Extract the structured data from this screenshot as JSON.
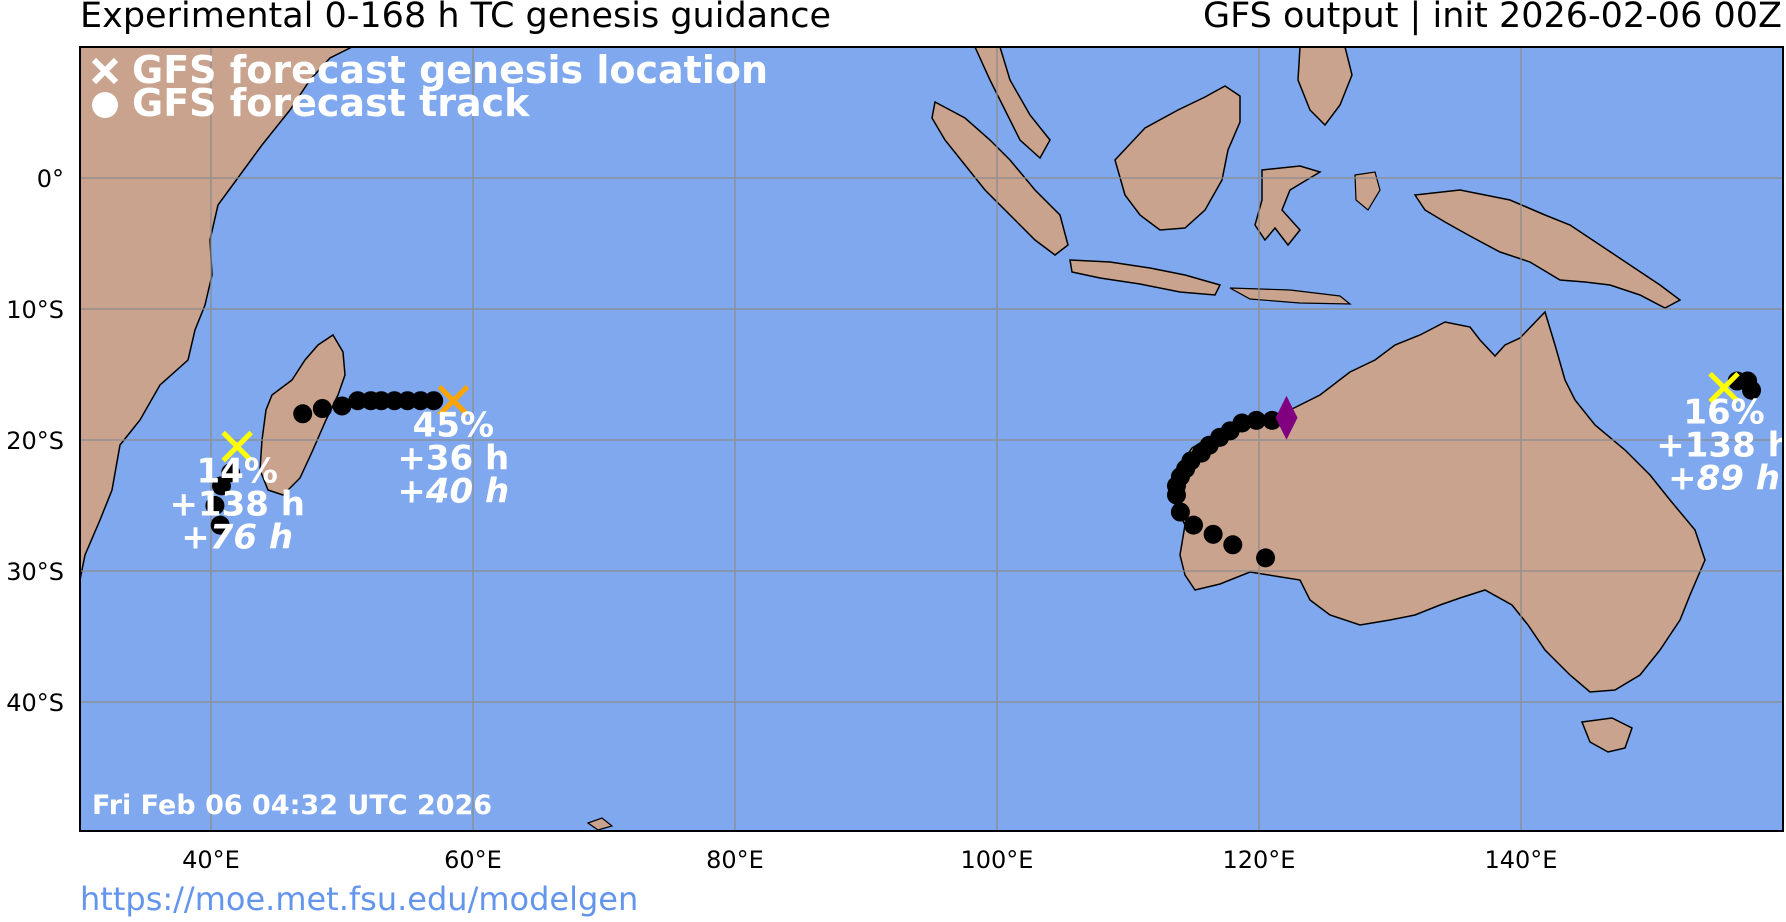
{
  "header": {
    "title_left": "Experimental 0-168 h TC genesis guidance",
    "title_right": "GFS output | init 2026-02-06 00Z"
  },
  "legend": {
    "genesis_label": "GFS forecast genesis location",
    "track_label": "GFS forecast track"
  },
  "axes": {
    "lon_ticks": [
      "40°E",
      "60°E",
      "80°E",
      "100°E",
      "120°E",
      "140°E"
    ],
    "lat_ticks": [
      "0°",
      "10°S",
      "20°S",
      "30°S",
      "40°S"
    ],
    "lon_range": [
      30,
      160
    ],
    "lat_range": [
      -50,
      10
    ]
  },
  "timestamp": "Fri Feb 06 04:32 UTC 2026",
  "source_url": "https://moe.met.fsu.edu/modelgen",
  "colors": {
    "ocean": "#7fa8ee",
    "land": "#c9a38e",
    "grid": "#8c8c8c",
    "track": "#000000",
    "genesis_low": "#ffff00",
    "genesis_mid": "#ffa500",
    "marker_other": "#800080",
    "text_overlay": "#ffffff"
  },
  "systems": [
    {
      "id": "madagascar-west",
      "genesis_lon": 42.0,
      "genesis_lat": -20.5,
      "color": "genesis_low",
      "probability": "14%",
      "lead_time": "+138 h",
      "duration": "+76 h",
      "track": [
        [
          41.5,
          -22.5
        ],
        [
          40.8,
          -23.5
        ],
        [
          40.3,
          -25.0
        ],
        [
          40.7,
          -26.5
        ]
      ]
    },
    {
      "id": "mascarene",
      "genesis_lon": 58.5,
      "genesis_lat": -17.0,
      "color": "genesis_mid",
      "probability": "45%",
      "lead_time": "+36 h",
      "duration": "+40 h",
      "track": [
        [
          57.0,
          -17.0
        ],
        [
          56.0,
          -17.0
        ],
        [
          55.0,
          -17.0
        ],
        [
          54.0,
          -17.0
        ],
        [
          53.0,
          -17.0
        ],
        [
          52.2,
          -17.0
        ],
        [
          51.2,
          -17.0
        ],
        [
          50.0,
          -17.4
        ],
        [
          48.5,
          -17.6
        ],
        [
          47.0,
          -18.0
        ]
      ]
    },
    {
      "id": "coral-sea",
      "genesis_lon": 155.5,
      "genesis_lat": -16.0,
      "color": "genesis_low",
      "probability": "16%",
      "lead_time": "+138 h",
      "duration": "+89 h",
      "track": [
        [
          156.5,
          -15.5
        ],
        [
          157.3,
          -15.5
        ],
        [
          157.6,
          -16.2
        ]
      ]
    }
  ],
  "other_track": {
    "marker_lon": 122.1,
    "marker_lat": -18.3,
    "track": [
      [
        121.0,
        -18.5
      ],
      [
        119.8,
        -18.5
      ],
      [
        118.7,
        -18.7
      ],
      [
        117.8,
        -19.3
      ],
      [
        117.0,
        -19.8
      ],
      [
        116.2,
        -20.4
      ],
      [
        115.6,
        -21.0
      ],
      [
        114.8,
        -21.6
      ],
      [
        114.4,
        -22.2
      ],
      [
        114.0,
        -22.8
      ],
      [
        113.7,
        -23.5
      ],
      [
        113.7,
        -24.2
      ],
      [
        114.0,
        -25.5
      ],
      [
        115.0,
        -26.5
      ],
      [
        116.5,
        -27.2
      ],
      [
        118.0,
        -28.0
      ],
      [
        120.5,
        -29.0
      ]
    ]
  }
}
